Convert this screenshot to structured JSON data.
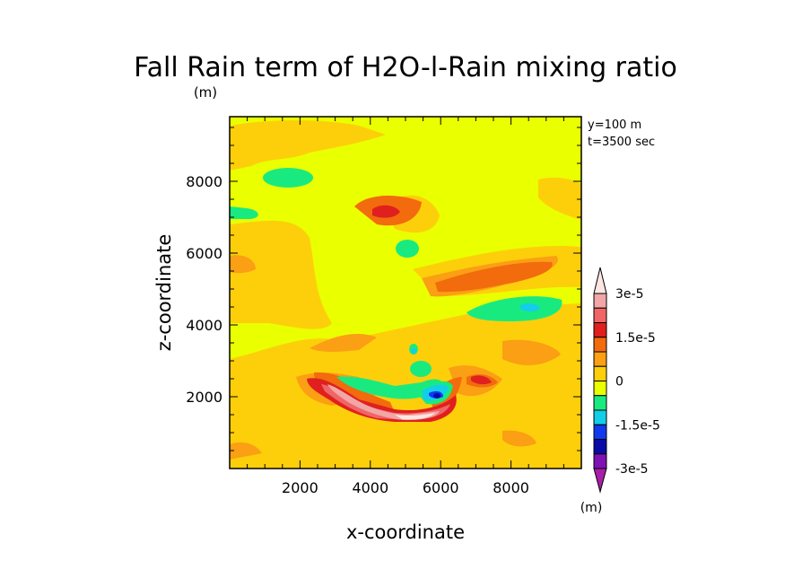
{
  "chart_data": {
    "type": "heatmap",
    "title": "Fall Rain term of H2O-l-Rain mixing ratio",
    "title_unit": "(m)",
    "xlabel": "x-coordinate",
    "ylabel": "z-coordinate",
    "xlim": [
      0,
      10000
    ],
    "ylim": [
      0,
      9800
    ],
    "x_ticks": [
      "2000",
      "4000",
      "6000",
      "8000"
    ],
    "y_ticks": [
      "2000",
      "4000",
      "6000",
      "8000"
    ],
    "annotations": [
      "y=100 m",
      "t=3500 sec"
    ],
    "colorbar": {
      "tick_labels": [
        "3e-5",
        "1.5e-5",
        "0",
        "-1.5e-5",
        "-3e-5"
      ],
      "unit": "(m)",
      "levels": [
        {
          "range": [
            3e-05,
            null
          ],
          "color": "#fde6e2"
        },
        {
          "range": [
            2.5e-05,
            3e-05
          ],
          "color": "#f2a6a6"
        },
        {
          "range": [
            2e-05,
            2.5e-05
          ],
          "color": "#f06565"
        },
        {
          "range": [
            1.5e-05,
            2e-05
          ],
          "color": "#e01f1f"
        },
        {
          "range": [
            1e-05,
            1.5e-05
          ],
          "color": "#f26b0c"
        },
        {
          "range": [
            5e-06,
            1e-05
          ],
          "color": "#fb9f14"
        },
        {
          "range": [
            0.0,
            5e-06
          ],
          "color": "#fdcf0a"
        },
        {
          "range": [
            -5e-06,
            0.0
          ],
          "color": "#eaff00"
        },
        {
          "range": [
            -1e-05,
            -5e-06
          ],
          "color": "#19ea80"
        },
        {
          "range": [
            -1.5e-05,
            -1e-05
          ],
          "color": "#12cee8"
        },
        {
          "range": [
            -2e-05,
            -1.5e-05
          ],
          "color": "#1238f0"
        },
        {
          "range": [
            -2.5e-05,
            -2e-05
          ],
          "color": "#0a0aa8"
        },
        {
          "range": [
            -3e-05,
            -2.5e-05
          ],
          "color": "#7e12b4"
        },
        {
          "range": [
            null,
            -3e-05
          ],
          "color": "#a81ea8"
        }
      ]
    },
    "features": [
      {
        "x": 4300,
        "z": 7300,
        "level": 1.5e-05,
        "kind": "max"
      },
      {
        "x": 4450,
        "z": 1700,
        "level": 3e-05,
        "kind": "max"
      },
      {
        "x": 5850,
        "z": 2150,
        "level": -2.5e-05,
        "kind": "min"
      },
      {
        "x": 1600,
        "z": 8200,
        "level": -5e-06,
        "kind": "min"
      },
      {
        "x": 8200,
        "z": 4600,
        "level": -1e-05,
        "kind": "min"
      }
    ]
  }
}
